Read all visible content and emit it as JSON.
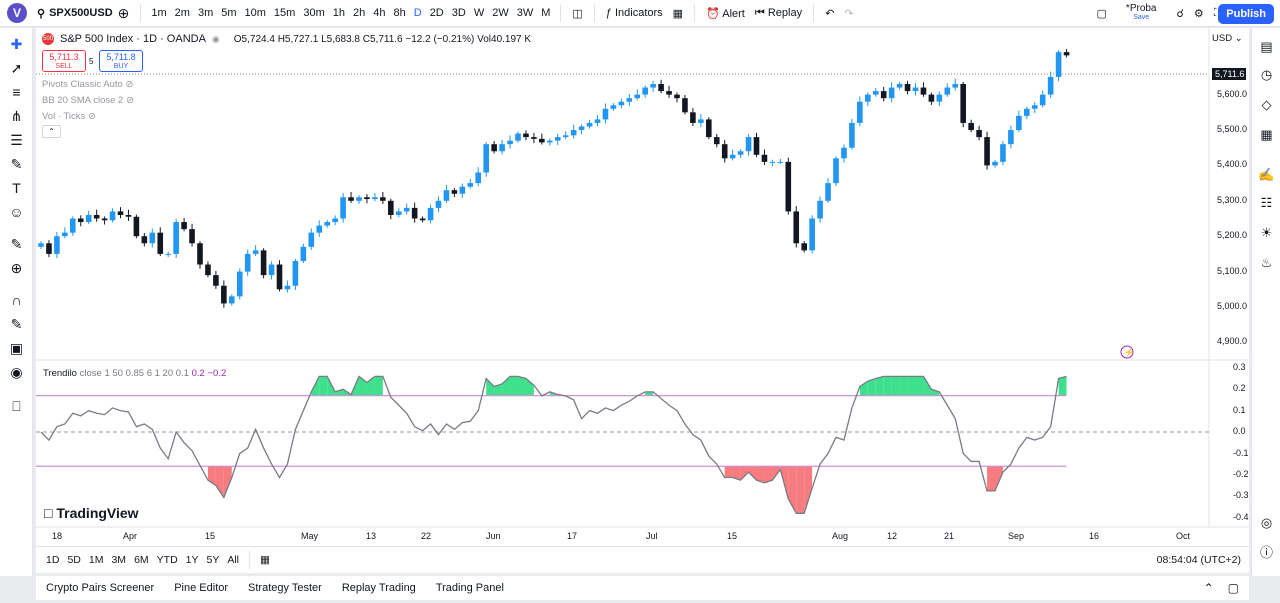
{
  "topbar": {
    "avatar": "V",
    "symbol": "SPX500USD",
    "intervals": [
      "1m",
      "2m",
      "3m",
      "5m",
      "10m",
      "15m",
      "30m",
      "1h",
      "2h",
      "4h",
      "8h",
      "D",
      "2D",
      "3D",
      "W",
      "2W",
      "3W",
      "M"
    ],
    "active_interval": "D",
    "indicators": "Indicators",
    "alert": "Alert",
    "replay": "Replay",
    "layout_name": "*Proba",
    "layout_sub": "Save",
    "publish": "Publish"
  },
  "legend": {
    "badge": "500",
    "title": "S&P 500 Index · 1D · OANDA",
    "ohlc": "O5,724.4 H5,727.1 L5,683.8 C5,711.6 −12.2 (−0.21%) Vol40.197 K",
    "sell_price": "5,711.3",
    "sell_label": "SELL",
    "spread": "5",
    "buy_price": "5,711.8",
    "buy_label": "BUY",
    "indicators": [
      "Pivots Classic Auto",
      "BB 20 SMA close 2",
      "Vol · Ticks"
    ]
  },
  "price_axis": {
    "currency": "USD",
    "last_price": "5,711.6",
    "ticks": [
      "5,600.0",
      "5,500.0",
      "5,400.0",
      "5,300.0",
      "5,200.0",
      "5,100.0",
      "5,000.0",
      "4,900.0"
    ]
  },
  "osc_axis": {
    "ticks": [
      "0.3",
      "0.2",
      "0.1",
      "0.0",
      "-0.1",
      "-0.2",
      "-0.3",
      "-0.4"
    ]
  },
  "trendilo": {
    "name": "Trendilo",
    "params": "close 1 50 0.85 6 1 20",
    "v1": "0.1",
    "v2": "0.2",
    "v3": "−0.2"
  },
  "time_axis": {
    "labels": [
      "18",
      "Apr",
      "15",
      "May",
      "13",
      "22",
      "Jun",
      "17",
      "Jul",
      "15",
      "Aug",
      "12",
      "21",
      "Sep",
      "16",
      "Oct"
    ]
  },
  "bottombar": {
    "ranges": [
      "1D",
      "5D",
      "1M",
      "3M",
      "6M",
      "YTD",
      "1Y",
      "5Y",
      "All"
    ],
    "clock": "08:54:04 (UTC+2)"
  },
  "tabs": [
    "Crypto Pairs Screener",
    "Pine Editor",
    "Strategy Tester",
    "Replay Trading",
    "Trading Panel"
  ],
  "brand": "TradingView",
  "colors": {
    "up": "#2196f3",
    "down": "#131722",
    "accent": "#2962ff",
    "osc_line": "#787b86",
    "band": "#ce93d8",
    "fill_up": "#3ee08e",
    "fill_down": "#f77c80"
  },
  "chart_data": {
    "type": "candlestick",
    "ylim": [
      4870,
      5760
    ],
    "closes": [
      5180,
      5150,
      5200,
      5210,
      5250,
      5240,
      5260,
      5250,
      5245,
      5270,
      5260,
      5255,
      5200,
      5180,
      5210,
      5150,
      5150,
      5240,
      5220,
      5180,
      5120,
      5090,
      5060,
      5010,
      5030,
      5100,
      5150,
      5160,
      5090,
      5120,
      5050,
      5060,
      5130,
      5170,
      5210,
      5230,
      5240,
      5250,
      5310,
      5300,
      5310,
      5305,
      5310,
      5300,
      5260,
      5270,
      5280,
      5250,
      5245,
      5280,
      5300,
      5330,
      5320,
      5340,
      5350,
      5380,
      5460,
      5440,
      5460,
      5470,
      5490,
      5480,
      5475,
      5465,
      5470,
      5480,
      5485,
      5500,
      5510,
      5520,
      5530,
      5560,
      5570,
      5580,
      5590,
      5600,
      5620,
      5630,
      5610,
      5600,
      5590,
      5550,
      5520,
      5530,
      5480,
      5460,
      5420,
      5430,
      5440,
      5480,
      5430,
      5410,
      5410,
      5410,
      5270,
      5180,
      5160,
      5250,
      5300,
      5350,
      5420,
      5450,
      5520,
      5580,
      5600,
      5610,
      5590,
      5620,
      5630,
      5610,
      5620,
      5600,
      5580,
      5600,
      5620,
      5630,
      5520,
      5500,
      5480,
      5400,
      5410,
      5460,
      5500,
      5540,
      5560,
      5570,
      5600,
      5650,
      5720,
      5711
    ]
  }
}
